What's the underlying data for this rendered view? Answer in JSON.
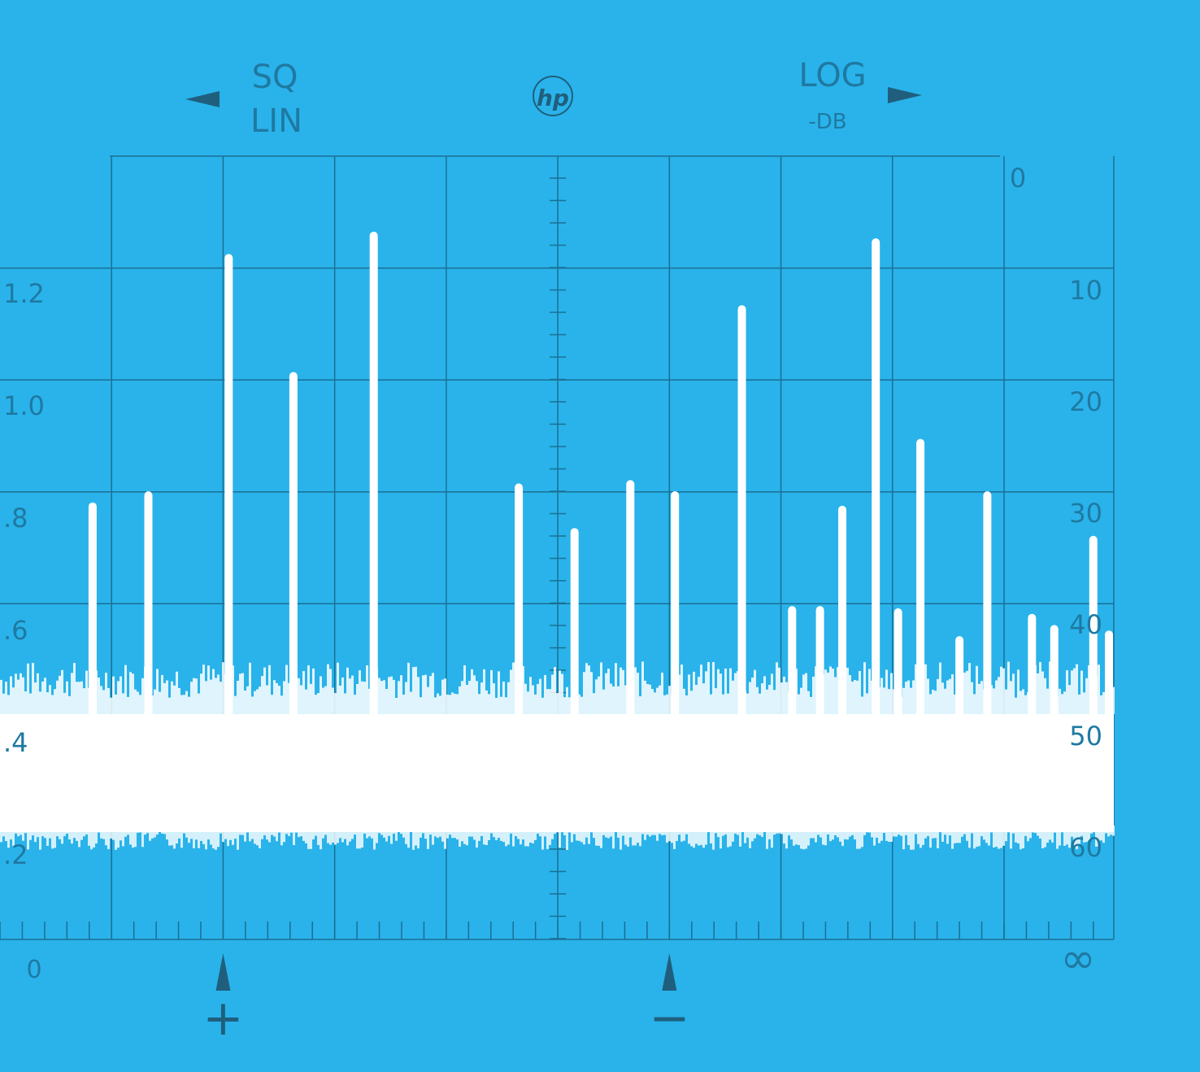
{
  "header": {
    "left_mode_top": "SQ",
    "left_mode_bottom": "LIN",
    "logo_text": "hp",
    "right_mode_top": "LOG",
    "right_mode_bottom": "-DB"
  },
  "colors": {
    "background": "#29b3ea",
    "trace": "#ffffff",
    "graticule": "#1b6f93",
    "label": "#1f79a2",
    "marker": "#1f5f7d"
  },
  "chart_data": {
    "type": "bar",
    "title": "",
    "left_axis": {
      "scale": "square-law linear",
      "tick_labels": [
        "1.2",
        "1.0",
        ".8",
        ".6",
        ".4",
        ".2"
      ]
    },
    "right_axis": {
      "scale": "log -dB",
      "tick_labels": [
        "0",
        "10",
        "20",
        "30",
        "40",
        "50",
        "60"
      ],
      "range": [
        0,
        62
      ]
    },
    "bottom_axis": {
      "left_label": "0",
      "right_label": "∞",
      "markers": [
        {
          "symbol": "+",
          "division": 2
        },
        {
          "symbol": "−",
          "division": 6
        }
      ]
    },
    "grid": true,
    "divisions": 10,
    "noise_floor": {
      "top_db": 50,
      "bottom_db": 60
    },
    "peaks": [
      {
        "x": 0.83,
        "db": 31
      },
      {
        "x": 1.33,
        "db": 30
      },
      {
        "x": 2.05,
        "db": 8.7
      },
      {
        "x": 2.63,
        "db": 19.3
      },
      {
        "x": 3.35,
        "db": 6.7
      },
      {
        "x": 4.65,
        "db": 29.3
      },
      {
        "x": 5.15,
        "db": 33.3
      },
      {
        "x": 5.65,
        "db": 29
      },
      {
        "x": 6.05,
        "db": 30
      },
      {
        "x": 6.65,
        "db": 13.3
      },
      {
        "x": 7.1,
        "db": 40.3
      },
      {
        "x": 7.35,
        "db": 40.3
      },
      {
        "x": 7.55,
        "db": 31.3
      },
      {
        "x": 7.85,
        "db": 7.3
      },
      {
        "x": 8.05,
        "db": 40.5
      },
      {
        "x": 8.25,
        "db": 25.3
      },
      {
        "x": 8.6,
        "db": 43
      },
      {
        "x": 8.85,
        "db": 30
      },
      {
        "x": 9.25,
        "db": 41
      },
      {
        "x": 9.45,
        "db": 42
      },
      {
        "x": 9.8,
        "db": 34
      },
      {
        "x": 10.0,
        "db": 42.5
      }
    ]
  }
}
